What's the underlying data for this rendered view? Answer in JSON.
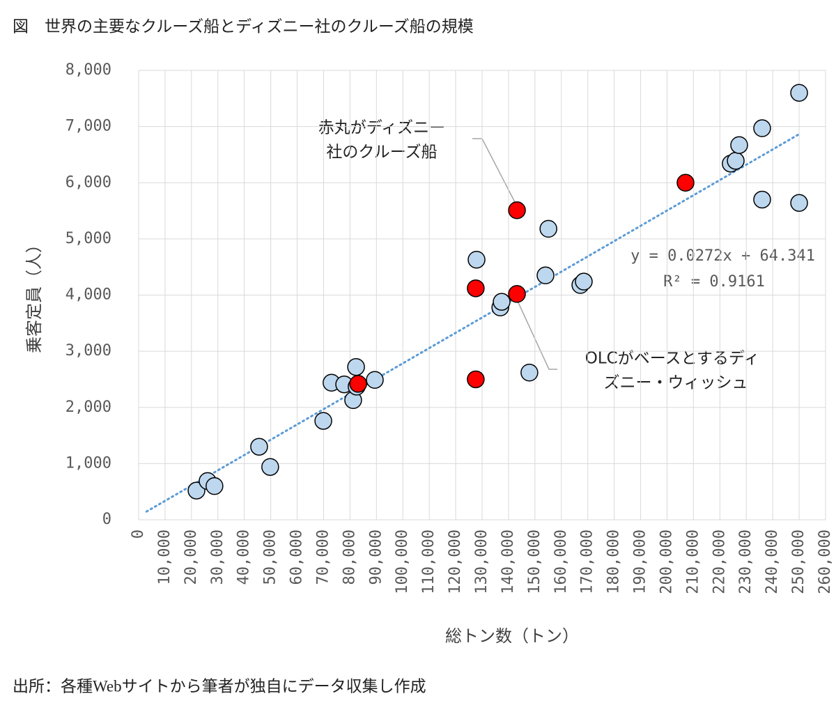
{
  "chart_data": {
    "type": "scatter",
    "title": "図　世界の主要なクルーズ船とディズニー社のクルーズ船の規模",
    "source": "出所：各種Webサイトから筆者が独自にデータ収集し作成",
    "x_label": "総トン数（トン）",
    "y_label": "乗客定員（人）",
    "xlim": [
      0,
      260000
    ],
    "ylim": [
      0,
      8000
    ],
    "xticks": [
      0,
      {
        "value": 10000,
        "label": "10,000"
      },
      {
        "value": 20000,
        "label": "20,000"
      },
      {
        "value": 30000,
        "label": "30,000"
      },
      {
        "value": 40000,
        "label": "40,000"
      },
      {
        "value": 50000,
        "label": "50,000"
      },
      {
        "value": 60000,
        "label": "60,000"
      },
      {
        "value": 70000,
        "label": "70,000"
      },
      {
        "value": 80000,
        "label": "80,000"
      },
      {
        "value": 90000,
        "label": "90,000"
      },
      {
        "value": 100000,
        "label": "100,000"
      },
      {
        "value": 110000,
        "label": "110,000"
      },
      {
        "value": 120000,
        "label": "120,000"
      },
      {
        "value": 130000,
        "label": "130,000"
      },
      {
        "value": 140000,
        "label": "140,000"
      },
      {
        "value": 150000,
        "label": "150,000"
      },
      {
        "value": 160000,
        "label": "160,000"
      },
      {
        "value": 170000,
        "label": "170,000"
      },
      {
        "value": 180000,
        "label": "180,000"
      },
      {
        "value": 190000,
        "label": "190,000"
      },
      {
        "value": 200000,
        "label": "200,000"
      },
      {
        "value": 210000,
        "label": "210,000"
      },
      {
        "value": 220000,
        "label": "220,000"
      },
      {
        "value": 230000,
        "label": "230,000"
      },
      {
        "value": 240000,
        "label": "240,000"
      },
      {
        "value": 250000,
        "label": "250,000"
      },
      {
        "value": 260000,
        "label": "260,000"
      }
    ],
    "yticks": [
      0,
      {
        "value": 1000,
        "label": "1,000"
      },
      {
        "value": 2000,
        "label": "2,000"
      },
      {
        "value": 3000,
        "label": "3,000"
      },
      {
        "value": 4000,
        "label": "4,000"
      },
      {
        "value": 5000,
        "label": "5,000"
      },
      {
        "value": 6000,
        "label": "6,000"
      },
      {
        "value": 7000,
        "label": "7,000"
      },
      {
        "value": 8000,
        "label": "8,000"
      }
    ],
    "grid": true,
    "series": [
      {
        "color": "#bdd7ee",
        "x": [
          21900,
          26100,
          28700,
          45600,
          49800,
          69900,
          73000,
          77800,
          81200,
          82300,
          82500,
          89400,
          127900,
          136900,
          137400,
          147900,
          154000,
          155100,
          167200,
          168500,
          224100,
          226000,
          227300,
          236000,
          236000,
          250000,
          250000
        ],
        "values": [
          520,
          690,
          600,
          1300,
          940,
          1760,
          2440,
          2410,
          2130,
          2720,
          2370,
          2490,
          4630,
          3780,
          3880,
          2620,
          4350,
          5180,
          4180,
          4240,
          6340,
          6390,
          6670,
          6970,
          5700,
          7600,
          5640
        ]
      },
      {
        "color": "#ff0000",
        "x": [
          83100,
          127600,
          127600,
          143200,
          143200,
          207000
        ],
        "values": [
          2420,
          4120,
          2500,
          5510,
          4020,
          6000
        ]
      }
    ],
    "trendline": {
      "slope": 0.0272,
      "intercept": 64.341,
      "x_range": [
        3000,
        250000
      ],
      "color": "#5b9bd5",
      "equation": "y = 0.0272x + 64.341",
      "r2": "R² = 0.9161"
    },
    "annotations": [
      {
        "lines": [
          "赤丸がディズニー",
          "社のクルーズ船"
        ]
      },
      {
        "lines": [
          "OLCがベースとするディ",
          "ズニー・ウィッシュ"
        ]
      }
    ]
  }
}
